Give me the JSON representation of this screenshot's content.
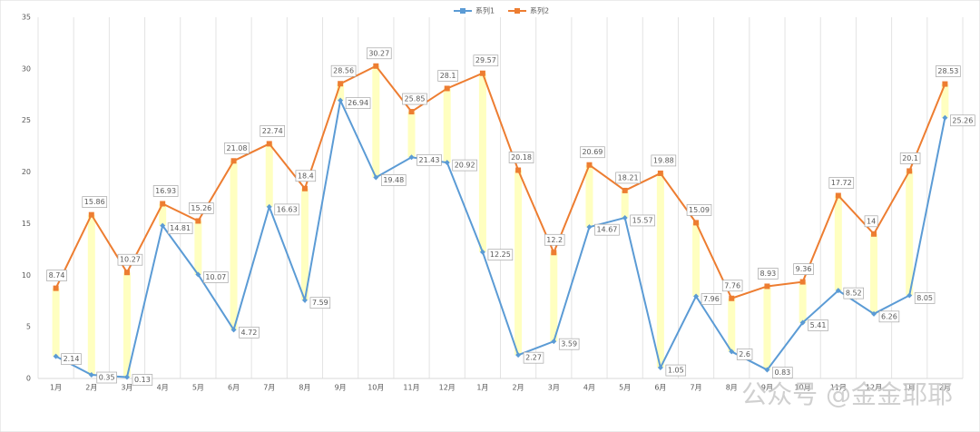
{
  "chart_data": {
    "type": "line",
    "categories": [
      "1月",
      "2月",
      "3月",
      "4月",
      "5月",
      "6月",
      "7月",
      "8月",
      "9月",
      "10月",
      "11月",
      "12月",
      "1月",
      "2月",
      "3月",
      "4月",
      "5月",
      "6月",
      "7月",
      "8月",
      "9月",
      "10月",
      "11月",
      "12月",
      "1月",
      "2月"
    ],
    "series": [
      {
        "name": "系列1",
        "color": "#5b9bd5",
        "values": [
          2.14,
          0.35,
          0.13,
          14.81,
          10.07,
          4.72,
          16.63,
          7.59,
          26.94,
          19.48,
          21.43,
          20.92,
          12.25,
          2.27,
          3.59,
          14.67,
          15.57,
          1.05,
          7.96,
          2.6,
          0.83,
          5.41,
          8.52,
          6.26,
          8.05,
          25.26
        ]
      },
      {
        "name": "系列2",
        "color": "#ed7d31",
        "values": [
          8.74,
          15.86,
          10.27,
          16.93,
          15.26,
          21.08,
          22.74,
          18.4,
          28.56,
          30.27,
          25.85,
          28.1,
          29.57,
          20.18,
          12.2,
          20.69,
          18.21,
          19.88,
          15.09,
          7.76,
          8.93,
          9.36,
          17.72,
          14,
          20.1,
          28.53
        ]
      }
    ],
    "band_color": "#ffffc0",
    "ylim": [
      0,
      35
    ],
    "yticks": [
      0,
      5,
      10,
      15,
      20,
      25,
      30,
      35
    ],
    "grid": true,
    "legend": "top",
    "watermark": "公众号 @金金耶耶"
  }
}
